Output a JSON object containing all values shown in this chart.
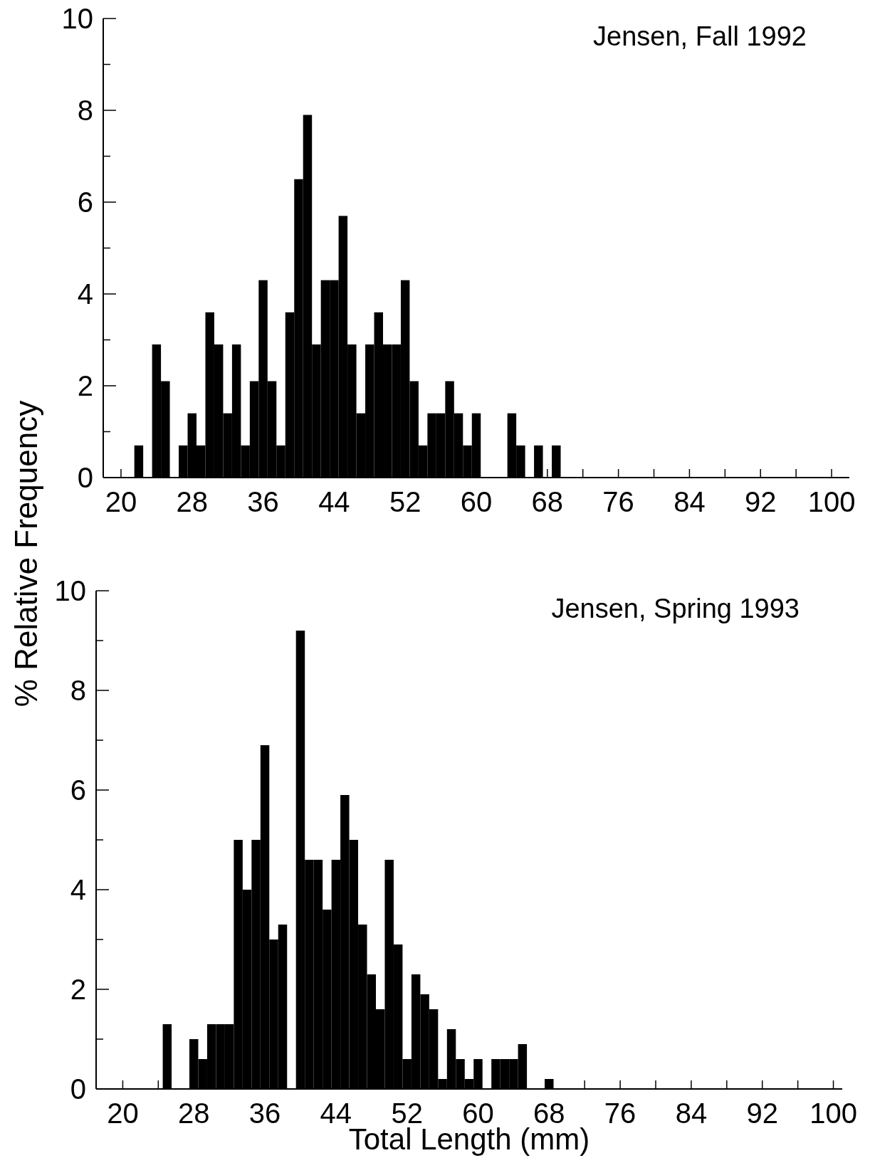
{
  "chart_data": [
    {
      "type": "histogram",
      "title": "Jensen, Fall 1992",
      "ylabel": "% Relative Frequency",
      "color": "#000000",
      "bins": [
        20.5,
        21.5,
        22.5,
        23.5,
        24.5,
        25.5,
        26.5,
        27.5,
        28.5,
        29.5,
        30.5,
        31.5,
        32.5,
        33.5,
        34.5,
        35.5,
        36.5,
        37.5,
        38.5,
        39.5,
        40.5,
        41.5,
        42.5,
        43.5,
        44.5,
        45.5,
        46.5,
        47.5,
        48.5,
        49.5,
        50.5,
        51.5,
        52.5,
        53.5,
        54.5,
        55.5,
        56.5,
        57.5,
        58.5,
        59.5,
        60.5,
        61.5,
        62.5,
        63.5,
        64.5,
        65.5,
        66.5,
        67.5,
        68.5,
        69.5
      ],
      "values": [
        0,
        0.7,
        0,
        2.9,
        2.1,
        0,
        0.7,
        1.4,
        0.7,
        3.6,
        2.9,
        1.4,
        2.9,
        0.7,
        2.1,
        4.3,
        2.1,
        0.7,
        3.6,
        6.5,
        7.9,
        2.9,
        4.3,
        4.3,
        5.7,
        2.9,
        1.4,
        2.9,
        3.6,
        2.9,
        2.9,
        4.3,
        2.1,
        0.7,
        1.4,
        1.4,
        2.1,
        1.4,
        0.7,
        1.4,
        0,
        0,
        0,
        1.4,
        0.7,
        0,
        0.7,
        0,
        0.7
      ],
      "xlim": [
        18,
        102
      ],
      "ylim": [
        0,
        10
      ],
      "xticks": [
        20,
        {
          "value": 24,
          "label": null
        },
        28,
        {
          "value": 32,
          "label": null
        },
        36,
        {
          "value": 40,
          "label": null
        },
        44,
        {
          "value": 48,
          "label": null
        },
        52,
        {
          "value": 56,
          "label": null
        },
        60,
        {
          "value": 64,
          "label": null
        },
        68,
        {
          "value": 72,
          "label": null
        },
        76,
        {
          "value": 80,
          "label": null
        },
        84,
        {
          "value": 88,
          "label": null
        },
        92,
        {
          "value": 96,
          "label": null
        },
        100
      ],
      "yticks": [
        0,
        {
          "value": 1,
          "label": null
        },
        2,
        {
          "value": 3,
          "label": null
        },
        4,
        {
          "value": 5,
          "label": null
        },
        6,
        {
          "value": 7,
          "label": null
        },
        8,
        {
          "value": 9,
          "label": null
        },
        10
      ]
    },
    {
      "type": "histogram",
      "title": "Jensen, Spring 1993",
      "xlabel": "Total Length (mm)",
      "color": "#000000",
      "bins": [
        20.5,
        21.5,
        22.5,
        23.5,
        24.5,
        25.5,
        26.5,
        27.5,
        28.5,
        29.5,
        30.5,
        31.5,
        32.5,
        33.5,
        34.5,
        35.5,
        36.5,
        37.5,
        38.5,
        39.5,
        40.5,
        41.5,
        42.5,
        43.5,
        44.5,
        45.5,
        46.5,
        47.5,
        48.5,
        49.5,
        50.5,
        51.5,
        52.5,
        53.5,
        54.5,
        55.5,
        56.5,
        57.5,
        58.5,
        59.5,
        60.5,
        61.5,
        62.5,
        63.5,
        64.5,
        65.5,
        66.5,
        67.5,
        68.5,
        69.5
      ],
      "values": [
        0,
        0,
        0,
        0,
        1.3,
        0,
        0,
        1.0,
        0.6,
        1.3,
        1.3,
        1.3,
        5.0,
        4.0,
        5.0,
        6.9,
        3.0,
        3.3,
        0,
        9.2,
        4.6,
        4.6,
        3.6,
        4.6,
        5.9,
        5.0,
        3.3,
        2.3,
        1.6,
        4.6,
        2.9,
        0.6,
        2.3,
        1.9,
        1.6,
        0.2,
        1.2,
        0.6,
        0.2,
        0.6,
        0,
        0.6,
        0.6,
        0.6,
        0.9,
        0,
        0,
        0.2,
        0
      ],
      "xlim": [
        17,
        101
      ],
      "ylim": [
        0,
        10
      ],
      "xticks": [
        20,
        {
          "value": 24,
          "label": null
        },
        28,
        {
          "value": 32,
          "label": null
        },
        36,
        {
          "value": 40,
          "label": null
        },
        44,
        {
          "value": 48,
          "label": null
        },
        52,
        {
          "value": 56,
          "label": null
        },
        60,
        {
          "value": 64,
          "label": null
        },
        68,
        {
          "value": 72,
          "label": null
        },
        76,
        {
          "value": 80,
          "label": null
        },
        84,
        {
          "value": 88,
          "label": null
        },
        92,
        {
          "value": 96,
          "label": null
        },
        100
      ],
      "yticks": [
        0,
        {
          "value": 1,
          "label": null
        },
        2,
        {
          "value": 3,
          "label": null
        },
        4,
        {
          "value": 5,
          "label": null
        },
        6,
        {
          "value": 7,
          "label": null
        },
        8,
        {
          "value": 9,
          "label": null
        },
        10
      ]
    }
  ]
}
